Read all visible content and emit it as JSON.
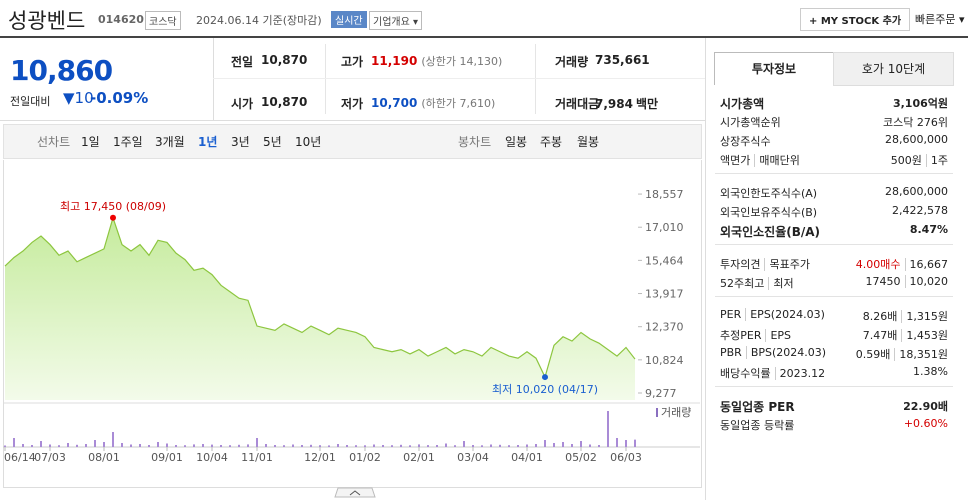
{
  "header": {
    "name": "성광벤드",
    "code": "014620",
    "market": "코스닥",
    "date": "2024.06.14 기준(장마감)",
    "realtime": "실시간",
    "overview": "기업개요",
    "mystock": "+ MY STOCK 추가",
    "quick_order": "빠른주문"
  },
  "quote": {
    "price": "10,860",
    "change_label": "전일대비",
    "change": "10",
    "change_pct": "-0.09%",
    "rows": [
      [
        {
          "label": "전일",
          "value": "10,870"
        },
        {
          "label": "고가",
          "value": "11,190",
          "note": "(상한가 14,130)"
        },
        {
          "label": "거래량",
          "value": "735,661"
        }
      ],
      [
        {
          "label": "시가",
          "value": "10,870"
        },
        {
          "label": "저가",
          "value": "10,700",
          "note": "(하한가 7,610)"
        },
        {
          "label": "거래대금",
          "value": "7,984",
          "unit": "백만"
        }
      ]
    ]
  },
  "periods": {
    "line_label": "선차트",
    "line": [
      "1일",
      "1주일",
      "3개월",
      "1년",
      "3년",
      "5년",
      "10년"
    ],
    "selected": 3,
    "candle_label": "봉차트",
    "candle": [
      "일봉",
      "주봉",
      "월봉"
    ]
  },
  "chart_data": {
    "type": "area",
    "color": "#8dc63f",
    "categories": [
      "06/14",
      null,
      null,
      null,
      null,
      "07/03",
      null,
      null,
      null,
      null,
      null,
      "08/01",
      null,
      null,
      null,
      null,
      null,
      null,
      "09/01",
      null,
      null,
      null,
      null,
      "10/04",
      null,
      null,
      null,
      null,
      "11/01",
      null,
      null,
      null,
      null,
      null,
      null,
      "12/01",
      null,
      null,
      null,
      null,
      "01/02",
      null,
      null,
      null,
      null,
      null,
      "02/01",
      null,
      null,
      null,
      null,
      null,
      "03/04",
      null,
      null,
      null,
      null,
      null,
      "04/01",
      null,
      null,
      null,
      null,
      null,
      "05/02",
      null,
      null,
      null,
      null,
      "06/03",
      null
    ],
    "values": [
      15200,
      15600,
      15900,
      16300,
      16600,
      16200,
      15700,
      15900,
      15400,
      15600,
      15800,
      16000,
      17450,
      16200,
      15900,
      16200,
      15700,
      16400,
      16300,
      15800,
      15500,
      15000,
      15100,
      14800,
      14300,
      14000,
      13700,
      13600,
      12400,
      12300,
      12200,
      12500,
      12300,
      12100,
      12400,
      12200,
      12000,
      12300,
      12200,
      12100,
      11900,
      11400,
      11300,
      11200,
      11300,
      11100,
      11300,
      11000,
      11200,
      11400,
      11100,
      11300,
      11200,
      11000,
      11400,
      11200,
      11000,
      10900,
      11200,
      10900,
      10020,
      11500,
      11900,
      11700,
      12100,
      11800,
      11600,
      11300,
      11000,
      11400,
      10860
    ],
    "ylim": [
      8950,
      18980
    ],
    "yticks": [
      {
        "value": 18557,
        "label": "18,557"
      },
      {
        "value": 17010,
        "label": "17,010"
      },
      {
        "value": 15464,
        "label": "15,464"
      },
      {
        "value": 13917,
        "label": "13,917"
      },
      {
        "value": 12370,
        "label": "12,370"
      },
      {
        "value": 10824,
        "label": "10,824"
      },
      {
        "value": 9277,
        "label": "9,277"
      }
    ],
    "annotations": {
      "high": "최고 17,450 (08/09)",
      "low": "최저 10,020 (04/17)"
    },
    "volume": {
      "name": "거래량",
      "color": "#a98bd6",
      "ylim": [
        0,
        4000000
      ],
      "values": [
        150000,
        900000,
        300000,
        200000,
        600000,
        250000,
        180000,
        400000,
        220000,
        300000,
        700000,
        500000,
        1500000,
        400000,
        250000,
        300000,
        200000,
        500000,
        350000,
        200000,
        180000,
        260000,
        300000,
        240000,
        200000,
        180000,
        220000,
        260000,
        900000,
        300000,
        200000,
        180000,
        250000,
        200000,
        220000,
        180000,
        160000,
        300000,
        200000,
        180000,
        170000,
        250000,
        200000,
        180000,
        220000,
        170000,
        260000,
        190000,
        200000,
        350000,
        180000,
        600000,
        200000,
        170000,
        250000,
        220000,
        180000,
        200000,
        250000,
        300000,
        700000,
        400000,
        500000,
        300000,
        600000,
        250000,
        200000,
        3600000,
        900000,
        700000,
        735661
      ]
    }
  },
  "side": {
    "tabs": [
      "투자정보",
      "호가 10단계"
    ],
    "groups": [
      [
        {
          "label": [
            "시가총액"
          ],
          "value": [
            "3,106억원"
          ],
          "bold": true
        },
        {
          "label": [
            "시가총액순위"
          ],
          "value": [
            "코스닥 276위"
          ]
        },
        {
          "label": [
            "상장주식수"
          ],
          "value": [
            "28,600,000"
          ]
        },
        {
          "label": [
            "액면가",
            "매매단위"
          ],
          "value": [
            "500원",
            "1주"
          ]
        }
      ],
      [
        {
          "label": [
            "외국인한도주식수(A)"
          ],
          "value": [
            "28,600,000"
          ]
        },
        {
          "label": [
            "외국인보유주식수(B)"
          ],
          "value": [
            "2,422,578"
          ]
        },
        {
          "label": [
            "외국인소진율(B/A)"
          ],
          "value": [
            "8.47%"
          ],
          "bold": true
        }
      ],
      [
        {
          "label": [
            "투자의견",
            "목표주가"
          ],
          "value": [
            "4.00매수",
            "16,667"
          ],
          "color": "#d40000"
        },
        {
          "label": [
            "52주최고",
            "최저"
          ],
          "value": [
            "17450",
            "10,020"
          ]
        }
      ],
      [
        {
          "label": [
            "PER",
            "EPS(2024.03)"
          ],
          "value": [
            "8.26배",
            "1,315원"
          ]
        },
        {
          "label": [
            "추정PER",
            "EPS"
          ],
          "value": [
            "7.47배",
            "1,453원"
          ]
        },
        {
          "label": [
            "PBR",
            "BPS(2024.03)"
          ],
          "value": [
            "0.59배",
            "18,351원"
          ]
        },
        {
          "label": [
            "배당수익률",
            "2023.12"
          ],
          "value": [
            "1.38%"
          ]
        }
      ],
      [
        {
          "label": [
            "동일업종 PER"
          ],
          "value": [
            "22.90배"
          ],
          "bold": true
        },
        {
          "label": [
            "동일업종 등락률"
          ],
          "value": [
            "+0.60%"
          ],
          "color": "#d40000"
        }
      ]
    ]
  }
}
